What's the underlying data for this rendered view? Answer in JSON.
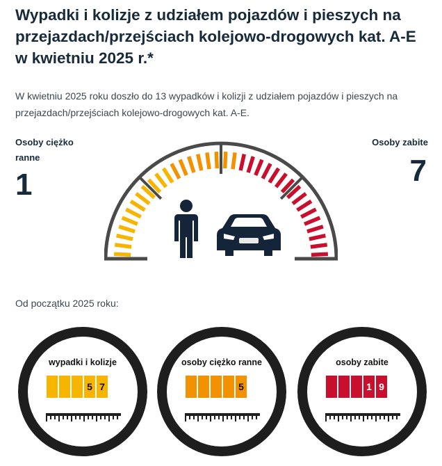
{
  "title": "Wypadki i kolizje z udziałem pojazdów i pieszych na przejazdach/przejściach kolejowo-drogowych kat. A-E w kwietniu 2025 r.*",
  "intro": "W kwietniu 2025 roku doszło do 13 wypadków i kolizji z udziałem pojazdów i pieszych na przejazdach/przejściach kolejowo-drogowych kat. A-E.",
  "stats": {
    "injured_label": "Osoby ciężko ranne",
    "injured_value": "1",
    "killed_label": "Osoby zabite",
    "killed_value": "7"
  },
  "since_label": "Od początku 2025 roku:",
  "counters": [
    {
      "label": "wypadki i kolizje",
      "digits": [
        "",
        "",
        "",
        "5",
        "7"
      ],
      "color": "#f7b500"
    },
    {
      "label": "osoby ciężko ranne",
      "digits": [
        "",
        "",
        "",
        "",
        "5"
      ],
      "color": "#f39200"
    },
    {
      "label": "osoby zabite",
      "digits": [
        "",
        "",
        "",
        "1",
        "9"
      ],
      "color": "#c8102e"
    }
  ],
  "gauge_colors": {
    "yellow": "#f7b500",
    "orange": "#f39200",
    "red": "#c8102e",
    "frame": "#4a4a4a",
    "figure": "#14253a"
  },
  "icons": {
    "person": "person-icon",
    "car": "car-icon"
  }
}
